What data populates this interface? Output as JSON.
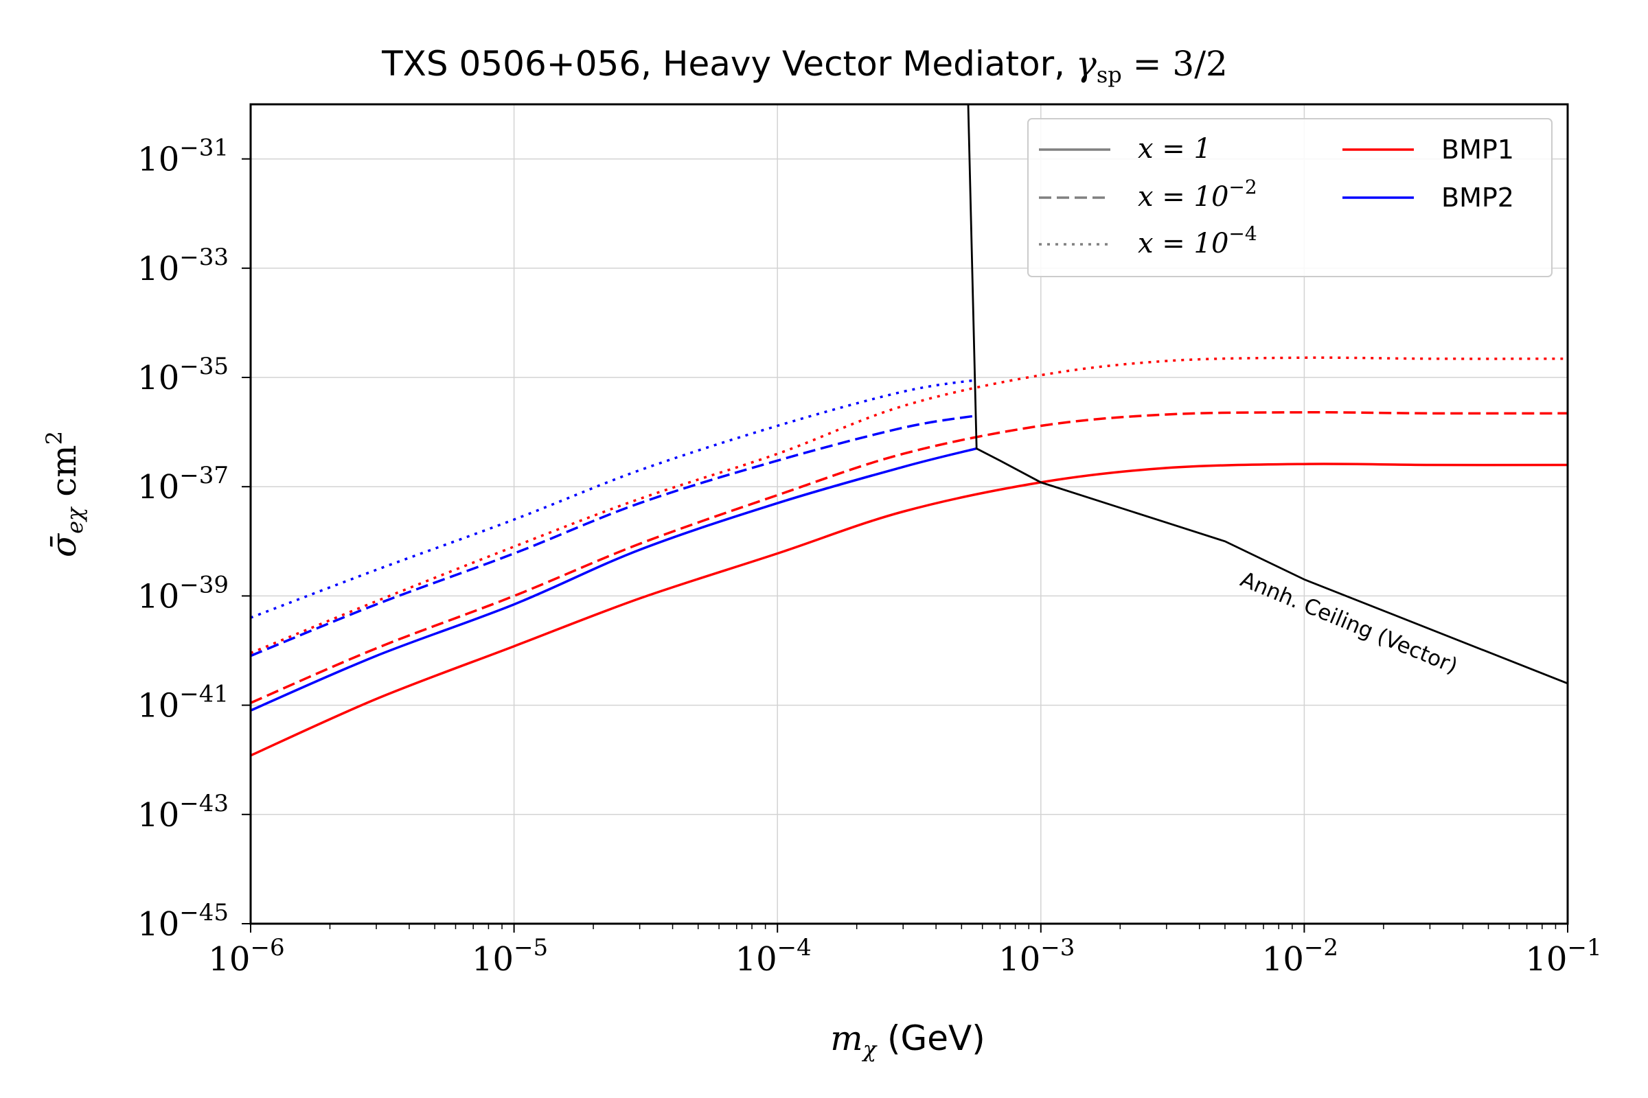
{
  "chart_data": {
    "type": "line",
    "title_text": "TXS 0506+056, Heavy Vector Mediator, ",
    "title_math": {
      "symbol": "γ",
      "sub": "sp",
      "rest": " = 3/2"
    },
    "xlabel_math": {
      "symbol": "m",
      "sub": "χ"
    },
    "xlabel_text": " (GeV)",
    "ylabel_math": {
      "symbol": "σ̄",
      "sub": "eχ",
      "unit": " cm",
      "sup": "2"
    },
    "x_scale": "log",
    "y_scale": "log",
    "xlim": [
      1e-06,
      0.1
    ],
    "ylim": [
      1e-45,
      1e-30
    ],
    "x_ticks": [
      {
        "base": "10",
        "exp": "−6",
        "value": 1e-06
      },
      {
        "base": "10",
        "exp": "−5",
        "value": 1e-05
      },
      {
        "base": "10",
        "exp": "−4",
        "value": 0.0001
      },
      {
        "base": "10",
        "exp": "−3",
        "value": 0.001
      },
      {
        "base": "10",
        "exp": "−2",
        "value": 0.01
      },
      {
        "base": "10",
        "exp": "−1",
        "value": 0.1
      }
    ],
    "y_ticks": [
      {
        "base": "10",
        "exp": "−31",
        "value": 1e-31
      },
      {
        "base": "10",
        "exp": "−33",
        "value": 1e-33
      },
      {
        "base": "10",
        "exp": "−35",
        "value": 1e-35
      },
      {
        "base": "10",
        "exp": "−37",
        "value": 1e-37
      },
      {
        "base": "10",
        "exp": "−39",
        "value": 1e-39
      },
      {
        "base": "10",
        "exp": "−41",
        "value": 1e-41
      },
      {
        "base": "10",
        "exp": "−43",
        "value": 1e-43
      },
      {
        "base": "10",
        "exp": "−45",
        "value": 1e-45
      }
    ],
    "grid": true,
    "legend_position": "top-right",
    "legend": [
      {
        "label_math": "x = 1",
        "style": "solid",
        "color": "#808080"
      },
      {
        "label_math": "x = 10",
        "label_sup": "−2",
        "style": "dashed",
        "color": "#808080"
      },
      {
        "label_math": "x = 10",
        "label_sup": "−4",
        "style": "dotted",
        "color": "#808080"
      },
      {
        "label": "BMP1",
        "style": "solid",
        "color": "#ff0000"
      },
      {
        "label": "BMP2",
        "style": "solid",
        "color": "#0000ff"
      }
    ],
    "series": [
      {
        "name": "BMP1",
        "x_param": "x = 1",
        "color": "#ff0000",
        "style": "solid",
        "x": [
          1e-06,
          3e-06,
          1e-05,
          3e-05,
          0.0001,
          0.0003,
          0.001,
          0.003,
          0.01,
          0.03,
          0.1
        ],
        "y": [
          1.2e-42,
          1.3e-41,
          1.2e-40,
          9e-40,
          6e-39,
          3.5e-38,
          1.2e-37,
          2.2e-37,
          2.6e-37,
          2.5e-37,
          2.5e-37
        ]
      },
      {
        "name": "BMP1",
        "x_param": "x = 10^-2",
        "color": "#ff0000",
        "style": "dashed",
        "x": [
          1e-06,
          3e-06,
          1e-05,
          3e-05,
          0.0001,
          0.0003,
          0.001,
          0.003,
          0.01,
          0.03,
          0.1
        ],
        "y": [
          1.1e-41,
          1.1e-40,
          1e-39,
          9e-39,
          7e-38,
          4e-37,
          1.3e-36,
          2.1e-36,
          2.3e-36,
          2.2e-36,
          2.2e-36
        ]
      },
      {
        "name": "BMP1",
        "x_param": "x = 10^-4",
        "color": "#ff0000",
        "style": "dotted",
        "x": [
          1e-06,
          3e-06,
          1e-05,
          3e-05,
          0.0001,
          0.0003,
          0.001,
          0.003,
          0.01,
          0.03,
          0.1
        ],
        "y": [
          9e-41,
          8e-40,
          8e-39,
          6e-38,
          4e-37,
          3e-36,
          1.1e-35,
          2e-35,
          2.3e-35,
          2.2e-35,
          2.2e-35
        ]
      },
      {
        "name": "BMP2",
        "x_param": "x = 1",
        "color": "#0000ff",
        "style": "solid",
        "x": [
          1e-06,
          3e-06,
          1e-05,
          3e-05,
          0.0001,
          0.0003,
          0.00057
        ],
        "y": [
          8e-42,
          8e-41,
          7e-40,
          7e-39,
          5e-38,
          2.3e-37,
          5e-37
        ]
      },
      {
        "name": "BMP2",
        "x_param": "x = 10^-2",
        "color": "#0000ff",
        "style": "dashed",
        "x": [
          1e-06,
          3e-06,
          1e-05,
          3e-05,
          0.0001,
          0.0003,
          0.00057
        ],
        "y": [
          8e-41,
          7e-40,
          6e-39,
          5e-38,
          3e-37,
          1.2e-36,
          2e-36
        ]
      },
      {
        "name": "BMP2",
        "x_param": "x = 10^-4",
        "color": "#0000ff",
        "style": "dotted",
        "x": [
          1e-06,
          3e-06,
          1e-05,
          3e-05,
          0.0001,
          0.0003,
          0.00057
        ],
        "y": [
          4e-40,
          3e-39,
          2.5e-38,
          2e-37,
          1.3e-36,
          5.5e-36,
          9e-36
        ]
      }
    ],
    "boundary": {
      "label": "Annh. Ceiling (Vector)",
      "color": "#000000",
      "x": [
        0.00053,
        0.00057,
        0.0007,
        0.001,
        0.005,
        0.01,
        0.1
      ],
      "y": [
        1e-30,
        5e-37,
        3e-37,
        1.2e-37,
        1e-38,
        2e-39,
        2.5e-41
      ]
    }
  }
}
